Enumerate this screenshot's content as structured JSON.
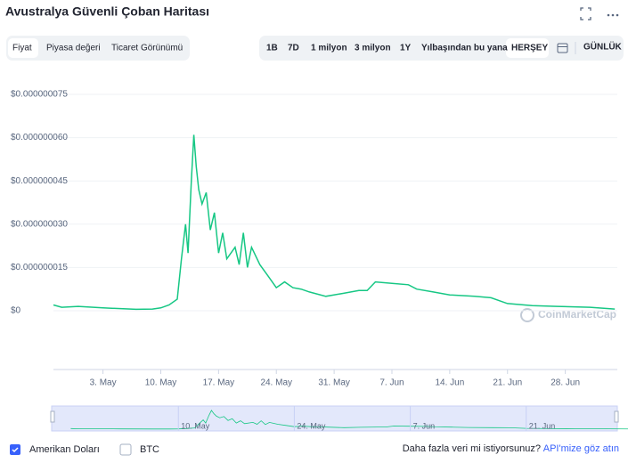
{
  "ui": {
    "title": "Avustralya Güvenli Çoban Haritası",
    "tabs": [
      "Fiyat",
      "Piyasa değeri",
      "Ticaret Görünümü"
    ],
    "ranges": [
      "1B",
      "7D",
      "1 milyon",
      "3 milyon",
      "1Y",
      "Yılbaşından bu yana",
      "HERŞEY"
    ],
    "interval": "GÜNLÜK",
    "alt_currency": "BTC",
    "more_data": "Daha fazla veri mi istiyorsunuz?",
    "api_link": "API'mize göz atın",
    "watermark": "CoinMarketCap"
  },
  "chart_data": {
    "type": "line",
    "x": [
      -3,
      -2,
      0,
      3,
      7,
      9,
      10,
      11,
      12,
      12.5,
      13,
      13.3,
      13.7,
      14,
      14.3,
      14.6,
      15,
      15.5,
      16,
      16.5,
      17,
      17.5,
      18,
      19,
      19.5,
      20,
      20.5,
      21,
      22,
      23,
      24,
      25,
      26,
      27,
      28,
      30,
      32,
      34,
      35,
      36,
      38,
      40,
      41,
      43,
      45,
      48,
      50,
      52,
      55,
      58,
      62,
      65
    ],
    "series": [
      {
        "name": "Amerikan Doları",
        "color": "#16c784",
        "values": [
          2e-09,
          1.2e-09,
          1.5e-09,
          1e-09,
          5e-10,
          6e-10,
          1e-09,
          2e-09,
          4e-09,
          1.8e-08,
          3e-08,
          2e-08,
          4.5e-08,
          6.1e-08,
          5e-08,
          4.2e-08,
          3.7e-08,
          4.1e-08,
          2.8e-08,
          3.4e-08,
          2e-08,
          2.7e-08,
          1.8e-08,
          2.2e-08,
          1.6e-08,
          2.7e-08,
          1.5e-08,
          2.2e-08,
          1.6e-08,
          1.2e-08,
          8e-09,
          1e-08,
          8e-09,
          7.5e-09,
          6.5e-09,
          5e-09,
          6e-09,
          7e-09,
          7e-09,
          1e-08,
          9.5e-09,
          9e-09,
          7.5e-09,
          6.5e-09,
          5.5e-09,
          5e-09,
          4.5e-09,
          2.5e-09,
          1.8e-09,
          1.5e-09,
          1.2e-09,
          6e-10
        ]
      }
    ],
    "xlim": [
      -3,
      65.3
    ],
    "xticks": [
      {
        "value": 3,
        "label": "3. May"
      },
      {
        "value": 10,
        "label": "10. May"
      },
      {
        "value": 17,
        "label": "17. May"
      },
      {
        "value": 24,
        "label": "24. May"
      },
      {
        "value": 31,
        "label": "31. May"
      },
      {
        "value": 38,
        "label": "7. Jun"
      },
      {
        "value": 45,
        "label": "14. Jun"
      },
      {
        "value": 52,
        "label": "21. Jun"
      },
      {
        "value": 59,
        "label": "28. Jun"
      }
    ],
    "ylim": [
      0,
      7.5e-08
    ],
    "yticks": [
      {
        "value": 0,
        "label": "$0"
      },
      {
        "value": 1.5e-08,
        "label": "$0.000000015"
      },
      {
        "value": 3e-08,
        "label": "$0.000000030"
      },
      {
        "value": 4.5e-08,
        "label": "$0.000000045"
      },
      {
        "value": 6e-08,
        "label": "$0.000000060"
      },
      {
        "value": 7.5e-08,
        "label": "$0.000000075"
      }
    ],
    "grid": true,
    "navigator_xlim": [
      -5.3,
      63
    ],
    "navigator_xticks": [
      {
        "value": 10,
        "label": "10. May"
      },
      {
        "value": 24,
        "label": "24. May"
      },
      {
        "value": 38,
        "label": "7. Jun"
      },
      {
        "value": 52,
        "label": "21. Jun"
      }
    ]
  }
}
